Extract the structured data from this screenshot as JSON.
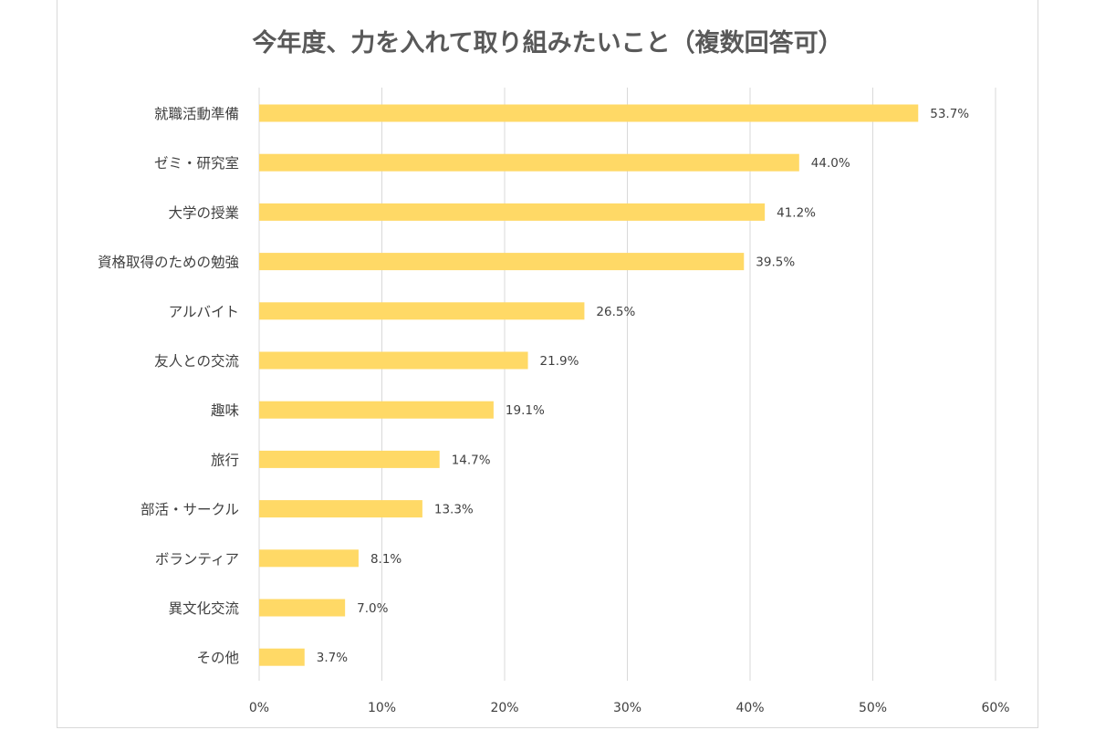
{
  "chart_data": {
    "type": "bar",
    "orientation": "horizontal",
    "title": "今年度、力を入れて取り組みたいこと（複数回答可）",
    "categories": [
      "就職活動準備",
      "ゼミ・研究室",
      "大学の授業",
      "資格取得のための勉強",
      "アルバイト",
      "友人との交流",
      "趣味",
      "旅行",
      "部活・サークル",
      "ボランティア",
      "異文化交流",
      "その他"
    ],
    "values": [
      53.7,
      44.0,
      41.2,
      39.5,
      26.5,
      21.9,
      19.1,
      14.7,
      13.3,
      8.1,
      7.0,
      3.7
    ],
    "data_labels": [
      "53.7%",
      "44.0%",
      "41.2%",
      "39.5%",
      "26.5%",
      "21.9%",
      "19.1%",
      "14.7%",
      "13.3%",
      "8.1%",
      "7.0%",
      "3.7%"
    ],
    "xlim": [
      0,
      60
    ],
    "x_ticks": [
      0,
      10,
      20,
      30,
      40,
      50,
      60
    ],
    "x_tick_labels": [
      "0%",
      "10%",
      "20%",
      "30%",
      "40%",
      "50%",
      "60%"
    ],
    "grid": "vertical",
    "legend": "none",
    "bar_color": "#ffd966"
  }
}
